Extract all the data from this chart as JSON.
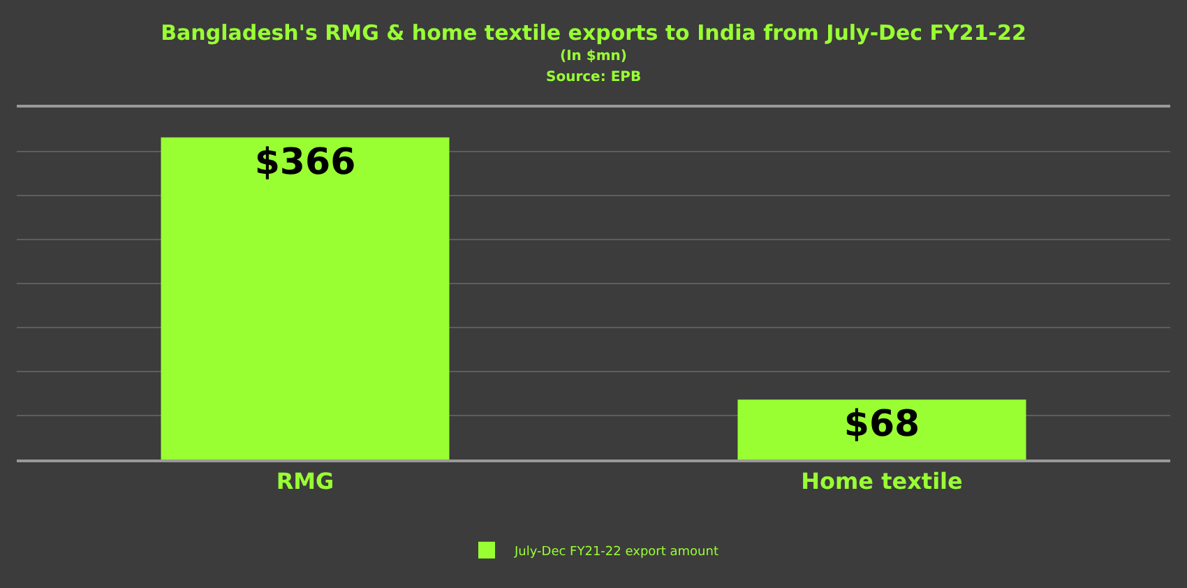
{
  "chart_data": {
    "type": "bar",
    "title": "Bangladesh's RMG & home textile exports to India from July-Dec FY21-22",
    "subtitle": "(In $mn)",
    "annotations": [
      "Source: EPB"
    ],
    "categories": [
      "RMG",
      "Home textile"
    ],
    "series": [
      {
        "name": "July-Dec FY21-22 export amount",
        "color": "#99ff33",
        "values": [
          366,
          68
        ],
        "value_labels": [
          "$366",
          "$68"
        ]
      }
    ],
    "ylim": [
      0,
      400
    ],
    "yticks": [
      {
        "value": 0,
        "label": null
      },
      {
        "value": 50,
        "label": null
      },
      {
        "value": 100,
        "label": null
      },
      {
        "value": 150,
        "label": null
      },
      {
        "value": 200,
        "label": null
      },
      {
        "value": 250,
        "label": null
      },
      {
        "value": 300,
        "label": null
      },
      {
        "value": 350,
        "label": null
      },
      {
        "value": 400,
        "label": null
      }
    ],
    "tick_labels": "x",
    "grid": "y",
    "legend": "bottom"
  }
}
